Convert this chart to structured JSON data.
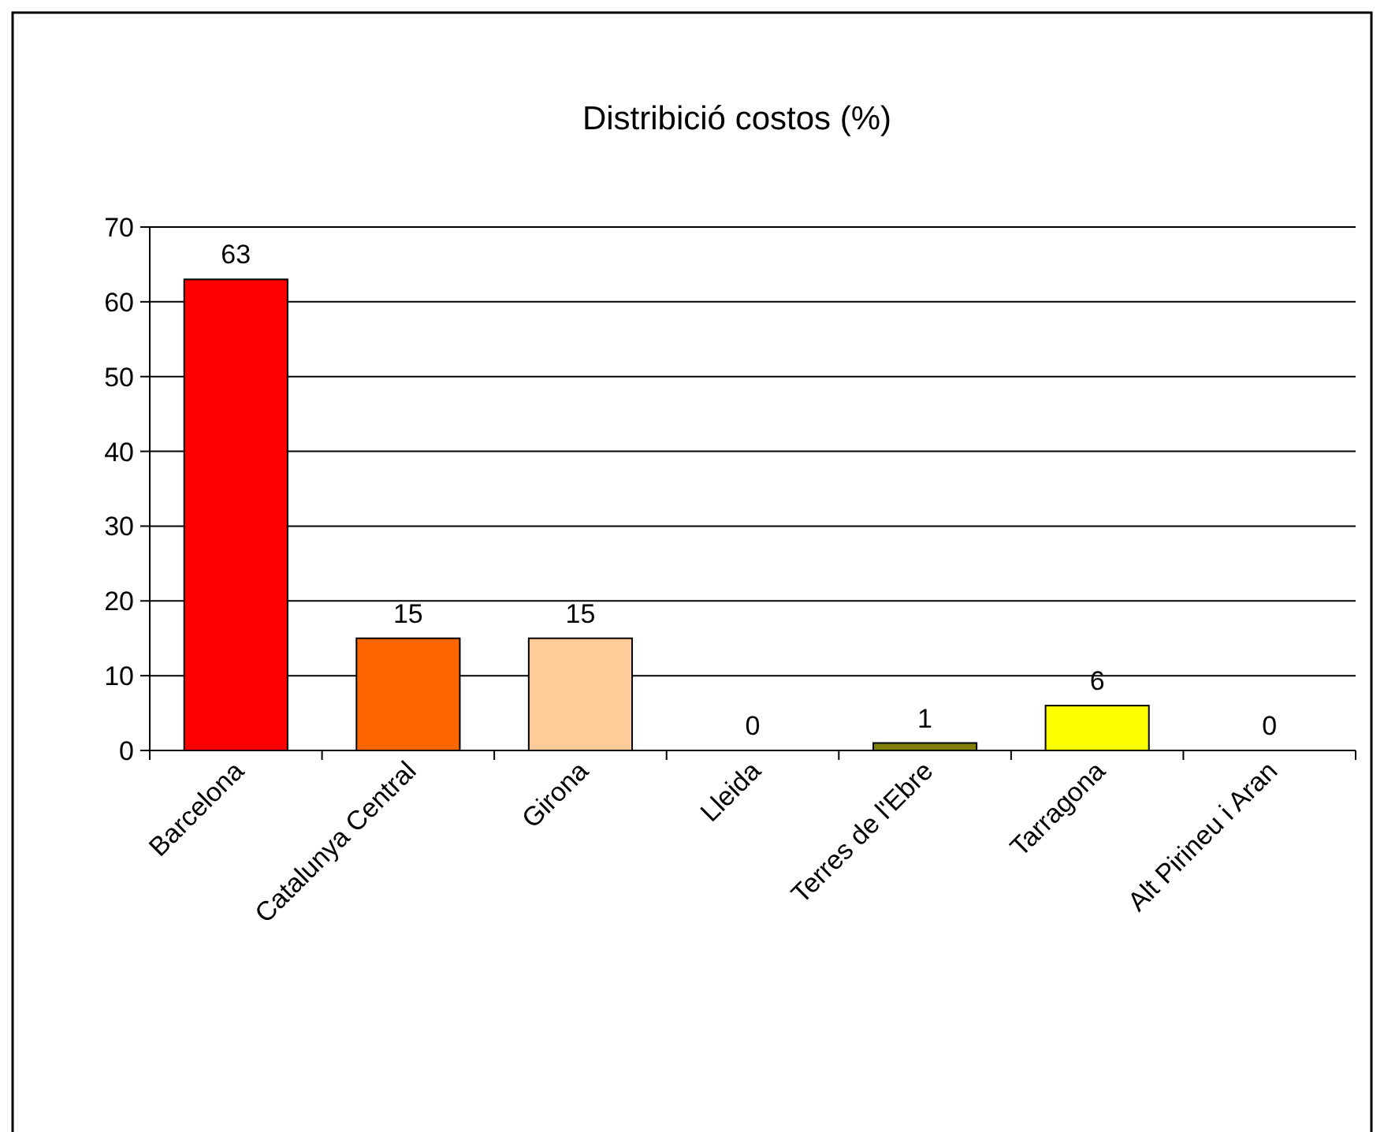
{
  "chart_data": {
    "type": "bar",
    "title": "Distribició costos (%)",
    "categories": [
      "Barcelona",
      "Catalunya Central",
      "Girona",
      "Lleida",
      "Terres de l'Ebre",
      "Tarragona",
      "Alt Pirineu i Aran"
    ],
    "values": [
      63,
      15,
      15,
      0,
      1,
      6,
      0
    ],
    "colors": [
      "#ff0000",
      "#ff6600",
      "#ffcc99",
      null,
      "#808000",
      "#ffff00",
      null
    ],
    "ylim": [
      0,
      70
    ],
    "yticks": [
      0,
      10,
      20,
      30,
      40,
      50,
      60,
      70
    ],
    "grid": "y",
    "data_labels": true
  }
}
